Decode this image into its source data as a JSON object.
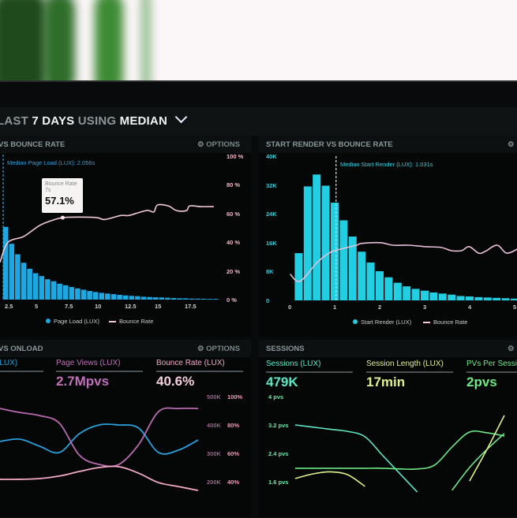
{
  "header": {
    "prefix": "LAST",
    "period": "7 DAYS",
    "mid": "USING",
    "stat": "MEDIAN"
  },
  "panels": {
    "page_load": {
      "title": "VS BOUNCE RATE",
      "options": "OPTIONS",
      "median_label": "Median Page Load (LUX): 2.056s",
      "tooltip": {
        "title": "Bounce Rate",
        "sub": "7s",
        "value": "57.1%"
      },
      "legend": [
        "Page Load (LUX)",
        "Bounce Rate"
      ]
    },
    "start_render": {
      "title": "START RENDER VS BOUNCE RATE",
      "median_label": "Median Start Render (LUX): 1.031s",
      "legend": [
        "Start Render (LUX)",
        "Bounce Rate"
      ]
    },
    "onload": {
      "title": "VS ONLOAD",
      "options": "OPTIONS",
      "metrics": [
        {
          "label": "(LUX)",
          "value": "",
          "color": "#2a9fd8"
        },
        {
          "label": "Page Views (LUX)",
          "value": "2.7Mpvs",
          "color": "#c070b8"
        },
        {
          "label": "Bounce Rate (LUX)",
          "value": "40.6%",
          "color": "#f3a8c6"
        }
      ],
      "axis_k": [
        "500K",
        "400K",
        "300K",
        "200K"
      ],
      "axis_pct": [
        "100%",
        "80%",
        "60%",
        "40%"
      ]
    },
    "sessions": {
      "title": "SESSIONS",
      "metrics": [
        {
          "label": "Sessions (LUX)",
          "value": "479K",
          "color": "#5fe6c4"
        },
        {
          "label": "Session Length (LUX)",
          "value": "17min",
          "color": "#dff08e"
        },
        {
          "label": "PVs Per Session",
          "value": "2pvs",
          "color": "#6ee887"
        }
      ],
      "axis": [
        "4 pvs",
        "3.2 pvs",
        "2.4 pvs",
        "1.6 pvs"
      ]
    }
  },
  "colors": {
    "page_load_bars": "#1ea7e0",
    "start_render_bars": "#22cfe2",
    "bounce_line": "#f2c9d9",
    "right_axis": "#f4b8c8",
    "cyan_axis": "#3fc9d6"
  },
  "chart_data": [
    {
      "type": "bar",
      "title": "VS BOUNCE RATE",
      "x_ticks": [
        "2.5",
        "5",
        "7.5",
        "10",
        "12.5",
        "15",
        "17.5"
      ],
      "xlim": [
        1.8,
        20.5
      ],
      "y_right_ticks": [
        "100 %",
        "80 %",
        "60 %",
        "40 %",
        "20 %",
        "0 %"
      ],
      "ylim": [
        0,
        100
      ],
      "median": 2.056,
      "series": [
        {
          "name": "Page Load (LUX)",
          "type": "bar",
          "x_start": 2.25,
          "bin": 0.5,
          "values": [
            50.7,
            38.9,
            31.6,
            25.7,
            21.5,
            18.4,
            16.4,
            14.2,
            12.8,
            11.1,
            10,
            8.8,
            7.8,
            6.9,
            6,
            5.3,
            4.7,
            4.2,
            3.8,
            3.3,
            2.9,
            2.6,
            2.4,
            2,
            1.8,
            1.6,
            1.5,
            1.3,
            1.1,
            0.9,
            0.9,
            0.7,
            0.7,
            0.6,
            0.5,
            0.5
          ]
        },
        {
          "name": "Bounce Rate",
          "type": "line",
          "points": [
            [
              1.78,
              26
            ],
            [
              2.43,
              39.8
            ],
            [
              3.75,
              44
            ],
            [
              5.07,
              51.6
            ],
            [
              6.16,
              55.3
            ],
            [
              7,
              57.1
            ],
            [
              8.35,
              57.5
            ],
            [
              9.87,
              57.1
            ],
            [
              10.5,
              55.8
            ],
            [
              11.85,
              58.6
            ],
            [
              12.5,
              58.6
            ],
            [
              13.4,
              60.8
            ],
            [
              14.1,
              62.2
            ],
            [
              14.6,
              61.1
            ],
            [
              14.9,
              65.9
            ],
            [
              15.8,
              65.3
            ],
            [
              16.5,
              62
            ],
            [
              17.3,
              62
            ],
            [
              17.6,
              65.3
            ],
            [
              18.5,
              64.8
            ],
            [
              19.6,
              64.8
            ]
          ]
        }
      ]
    },
    {
      "type": "bar",
      "title": "START RENDER VS BOUNCE RATE",
      "x_ticks": [
        "0",
        "1",
        "2",
        "3",
        "4",
        "5"
      ],
      "xlim": [
        0,
        5.1
      ],
      "y_ticks": [
        "40K",
        "32K",
        "24K",
        "16K",
        "8K",
        "0"
      ],
      "ylim": [
        0,
        40000
      ],
      "median": 1.031,
      "series": [
        {
          "name": "Start Render (LUX)",
          "type": "bar",
          "x_start": 0.2,
          "bin": 0.2,
          "values": [
            13100,
            31600,
            34900,
            31800,
            27100,
            22200,
            17700,
            13500,
            10500,
            8100,
            6400,
            4900,
            3900,
            3200,
            2700,
            2200,
            1900,
            1600,
            1200,
            1100,
            900,
            800,
            700,
            600,
            500
          ]
        },
        {
          "name": "Bounce Rate",
          "type": "line",
          "points": [
            [
              0.01,
              7300
            ],
            [
              0.23,
              5300
            ],
            [
              0.61,
              10500
            ],
            [
              0.9,
              13300
            ],
            [
              1.19,
              14400
            ],
            [
              1.49,
              15300
            ],
            [
              1.6,
              15800
            ],
            [
              2.01,
              16000
            ],
            [
              2.3,
              15300
            ],
            [
              2.65,
              15300
            ],
            [
              3.0,
              14900
            ],
            [
              3.36,
              14700
            ],
            [
              3.59,
              13800
            ],
            [
              3.82,
              13800
            ],
            [
              3.99,
              14900
            ],
            [
              4.2,
              13100
            ],
            [
              4.35,
              13600
            ],
            [
              4.61,
              15300
            ],
            [
              4.82,
              13100
            ],
            [
              5.06,
              14200
            ]
          ]
        }
      ]
    },
    {
      "type": "line",
      "title": "VS ONLOAD",
      "y_ticks_left": [
        "500K",
        "400K",
        "300K",
        "200K"
      ],
      "y_ticks_right": [
        "100%",
        "80%",
        "60%",
        "40%"
      ],
      "series": [
        {
          "name": "(LUX)",
          "axis": "K",
          "values": [
            342000,
            350000,
            325000,
            303000,
            369000,
            400000,
            400000,
            389000,
            303000,
            311000,
            347000
          ]
        },
        {
          "name": "Page Views (LUX)",
          "axis": "K",
          "values": [
            458000,
            444000,
            433000,
            406000,
            294000,
            261000,
            261000,
            331000,
            447000,
            458000,
            458000
          ]
        },
        {
          "name": "Bounce Rate (LUX)",
          "axis": "pct",
          "values": [
            41.7,
            41.7,
            42.2,
            44,
            47.2,
            50,
            50.6,
            46,
            39.4,
            36.6,
            33.9
          ]
        }
      ]
    },
    {
      "type": "line",
      "title": "SESSIONS",
      "y_ticks": [
        "4 pvs",
        "3.2 pvs",
        "2.4 pvs",
        "1.6 pvs"
      ],
      "ylim": [
        1.6,
        4
      ],
      "series": [
        {
          "values": [
            3.2,
            3.14,
            3.08,
            3.02,
            2.87,
            2.35,
            1.83,
            1.31,
            null,
            null,
            null,
            null,
            null
          ],
          "color": "#5fe6c4"
        },
        {
          "values": [
            1.98,
            1.98,
            1.98,
            1.98,
            1.98,
            1.98,
            1.96,
            1.96,
            2.07,
            2.58,
            3.0,
            2.98,
            2.89
          ],
          "color": "#6ee887"
        },
        {
          "values": [
            null,
            null,
            null,
            null,
            null,
            null,
            null,
            null,
            null,
            1.36,
            2.0,
            2.51,
            2.96
          ],
          "color": "#6ee887"
        },
        {
          "values": [
            1.69,
            1.82,
            1.88,
            1.8,
            1.47,
            null,
            null,
            null,
            null,
            null,
            1.62,
            2.51,
            3.47
          ],
          "color": "#dff08e"
        }
      ]
    }
  ]
}
